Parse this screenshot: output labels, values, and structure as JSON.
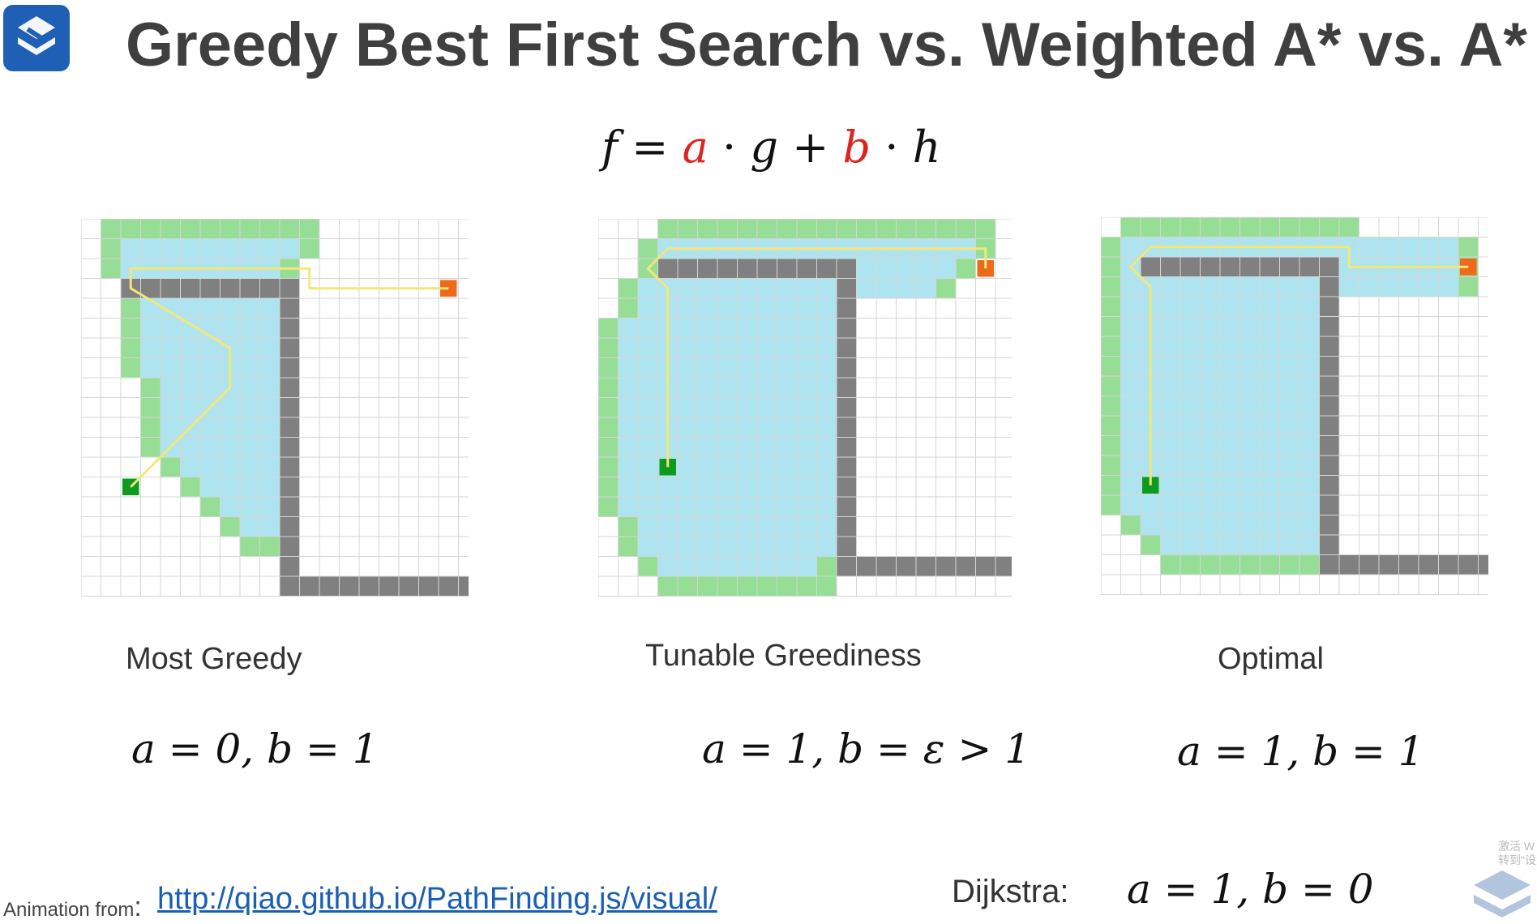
{
  "slide": {
    "title": "Greedy Best First Search vs. Weighted A* vs. A*",
    "formula": {
      "f": "f",
      "eq": "=",
      "a": "a",
      "dot1": "·",
      "g": "g",
      "plus": "+",
      "b": "b",
      "dot2": "·",
      "h": "h"
    },
    "panels": [
      {
        "label": "Most Greedy",
        "params": "a = 0, b = 1",
        "grid": {
          "cols": 20,
          "rows": 19,
          "explored_rows": [
            [
              1,
              11
            ],
            [
              1,
              11
            ],
            [
              1,
              10
            ],
            [
              2,
              10
            ],
            [
              2,
              10
            ],
            [
              2,
              10
            ],
            [
              2,
              10
            ],
            [
              2,
              10
            ],
            [
              3,
              10
            ],
            [
              3,
              10
            ],
            [
              3,
              10
            ],
            [
              3,
              10
            ],
            [
              4,
              10
            ],
            [
              5,
              10
            ],
            [
              6,
              10
            ],
            [
              7,
              10
            ],
            [
              8,
              10
            ]
          ],
          "walls": [
            [
              2,
              3
            ],
            [
              3,
              3
            ],
            [
              4,
              3
            ],
            [
              5,
              3
            ],
            [
              6,
              3
            ],
            [
              7,
              3
            ],
            [
              8,
              3
            ],
            [
              9,
              3
            ],
            [
              10,
              3
            ],
            [
              10,
              4
            ],
            [
              10,
              5
            ],
            [
              10,
              6
            ],
            [
              10,
              7
            ],
            [
              10,
              8
            ],
            [
              10,
              9
            ],
            [
              10,
              10
            ],
            [
              10,
              11
            ],
            [
              10,
              12
            ],
            [
              10,
              13
            ],
            [
              10,
              14
            ],
            [
              10,
              15
            ],
            [
              10,
              16
            ],
            [
              10,
              17
            ],
            [
              10,
              18
            ],
            [
              11,
              18
            ],
            [
              12,
              18
            ],
            [
              13,
              18
            ],
            [
              14,
              18
            ],
            [
              15,
              18
            ],
            [
              16,
              18
            ],
            [
              17,
              18
            ],
            [
              18,
              18
            ],
            [
              19,
              18
            ]
          ],
          "start": [
            2,
            13
          ],
          "end": [
            18,
            3
          ],
          "path": [
            [
              2,
              13
            ],
            [
              7,
              8
            ],
            [
              7,
              6
            ],
            [
              2,
              3
            ],
            [
              2,
              2
            ],
            [
              11,
              2
            ],
            [
              11,
              3
            ],
            [
              18,
              3
            ]
          ]
        }
      },
      {
        "label": "Tunable Greediness",
        "params": "a = 1, b = ε > 1",
        "grid": {
          "cols": 21,
          "rows": 19,
          "explored_rows": [
            [
              3,
              19
            ],
            [
              2,
              19
            ],
            [
              2,
              18
            ],
            [
              1,
              17
            ],
            [
              1,
              12
            ],
            [
              0,
              12
            ],
            [
              0,
              12
            ],
            [
              0,
              12
            ],
            [
              0,
              12
            ],
            [
              0,
              12
            ],
            [
              0,
              12
            ],
            [
              0,
              12
            ],
            [
              0,
              12
            ],
            [
              0,
              12
            ],
            [
              0,
              12
            ],
            [
              1,
              12
            ],
            [
              1,
              12
            ],
            [
              2,
              11
            ],
            [
              3,
              11
            ]
          ],
          "walls": [
            [
              3,
              2
            ],
            [
              4,
              2
            ],
            [
              5,
              2
            ],
            [
              6,
              2
            ],
            [
              7,
              2
            ],
            [
              8,
              2
            ],
            [
              9,
              2
            ],
            [
              10,
              2
            ],
            [
              11,
              2
            ],
            [
              12,
              2
            ],
            [
              12,
              3
            ],
            [
              12,
              4
            ],
            [
              12,
              5
            ],
            [
              12,
              6
            ],
            [
              12,
              7
            ],
            [
              12,
              8
            ],
            [
              12,
              9
            ],
            [
              12,
              10
            ],
            [
              12,
              11
            ],
            [
              12,
              12
            ],
            [
              12,
              13
            ],
            [
              12,
              14
            ],
            [
              12,
              15
            ],
            [
              12,
              16
            ],
            [
              12,
              17
            ],
            [
              13,
              17
            ],
            [
              14,
              17
            ],
            [
              15,
              17
            ],
            [
              16,
              17
            ],
            [
              17,
              17
            ],
            [
              18,
              17
            ],
            [
              19,
              17
            ],
            [
              20,
              17
            ]
          ],
          "start": [
            3,
            12
          ],
          "end": [
            19,
            2
          ],
          "path": [
            [
              3,
              12
            ],
            [
              3,
              3
            ],
            [
              2,
              2
            ],
            [
              3,
              1
            ],
            [
              19,
              1
            ],
            [
              19,
              2
            ]
          ]
        }
      },
      {
        "label": "Optimal",
        "params": "a = 1, b = 1",
        "grid": {
          "cols": 20,
          "rows": 19,
          "explored_rows": [
            [
              1,
              12
            ],
            [
              0,
              18
            ],
            [
              0,
              18
            ],
            [
              0,
              18
            ],
            [
              0,
              11
            ],
            [
              0,
              11
            ],
            [
              0,
              11
            ],
            [
              0,
              11
            ],
            [
              0,
              11
            ],
            [
              0,
              11
            ],
            [
              0,
              11
            ],
            [
              0,
              11
            ],
            [
              0,
              11
            ],
            [
              0,
              11
            ],
            [
              0,
              11
            ],
            [
              1,
              11
            ],
            [
              2,
              11
            ],
            [
              3,
              11
            ]
          ],
          "walls": [
            [
              2,
              2
            ],
            [
              3,
              2
            ],
            [
              4,
              2
            ],
            [
              5,
              2
            ],
            [
              6,
              2
            ],
            [
              7,
              2
            ],
            [
              8,
              2
            ],
            [
              9,
              2
            ],
            [
              10,
              2
            ],
            [
              11,
              2
            ],
            [
              11,
              3
            ],
            [
              11,
              4
            ],
            [
              11,
              5
            ],
            [
              11,
              6
            ],
            [
              11,
              7
            ],
            [
              11,
              8
            ],
            [
              11,
              9
            ],
            [
              11,
              10
            ],
            [
              11,
              11
            ],
            [
              11,
              12
            ],
            [
              11,
              13
            ],
            [
              11,
              14
            ],
            [
              11,
              15
            ],
            [
              11,
              16
            ],
            [
              11,
              17
            ],
            [
              12,
              17
            ],
            [
              13,
              17
            ],
            [
              14,
              17
            ],
            [
              15,
              17
            ],
            [
              16,
              17
            ],
            [
              17,
              17
            ],
            [
              18,
              17
            ],
            [
              19,
              17
            ]
          ],
          "start": [
            2,
            13
          ],
          "end": [
            18,
            2
          ],
          "path": [
            [
              2,
              13
            ],
            [
              2,
              3
            ],
            [
              1,
              2
            ],
            [
              2,
              1
            ],
            [
              12,
              1
            ],
            [
              12,
              2
            ],
            [
              18,
              2
            ]
          ]
        }
      }
    ],
    "colors": {
      "explored": "#aee4f0",
      "frontier": "#96de96",
      "wall": "#808080",
      "start": "#0e9a1e",
      "end": "#ee6a1a",
      "path": "#f2e878",
      "grid_line": "#d6d6d6",
      "red": "#e0231c",
      "link": "#1a5fb4"
    },
    "footer": {
      "credit": "Animation from",
      "colon": ":",
      "link_text": "http://qiao.github.io/PathFinding.js/visual/",
      "dijkstra_label": "Dijkstra:",
      "dijkstra_params": "a = 1, b = 0"
    },
    "watermark": "激活 W\n转到\"设置\""
  }
}
